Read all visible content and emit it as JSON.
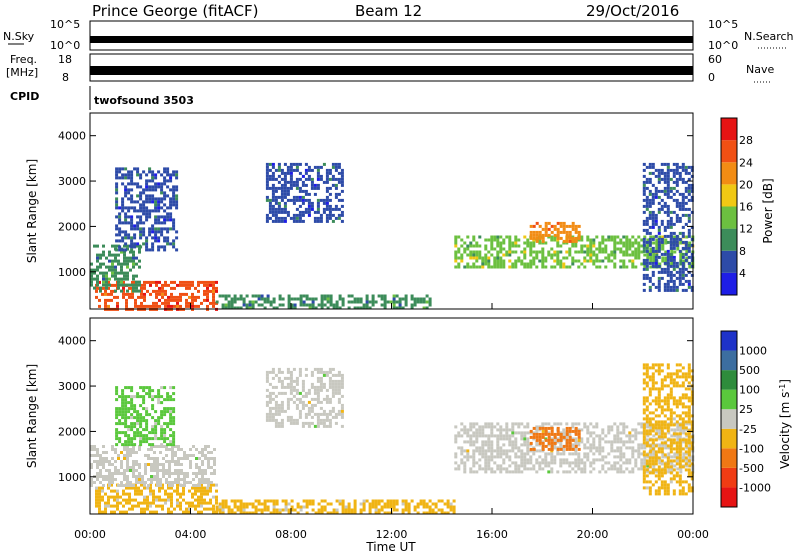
{
  "header": {
    "station": "Prince George (fitACF)",
    "beam": "Beam 12",
    "date": "29/Oct/2016"
  },
  "summary_panels": {
    "nsky_label": "N.Sky",
    "nsky_ticks": [
      "10^5",
      "10^0"
    ],
    "nsearch_label": "N.Search",
    "nsearch_ticks": [
      "10^5",
      "10^0"
    ],
    "freq_label": "Freq.",
    "freq_unit": "[MHz]",
    "freq_ticks": [
      "18",
      "8"
    ],
    "nave_label": "Nave",
    "nave_ticks": [
      "60",
      "0"
    ],
    "cpid_label": "CPID",
    "cpid_value": "twofsound 3503"
  },
  "x_axis": {
    "label": "Time UT",
    "ticks": [
      "00:00",
      "04:00",
      "08:00",
      "12:00",
      "16:00",
      "20:00",
      "00:00"
    ]
  },
  "y_axis": {
    "label": "Slant Range [km]",
    "ticks": [
      "1000",
      "2000",
      "3000",
      "4000"
    ]
  },
  "power_scale": {
    "label": "Power [dB]",
    "ticks": [
      "4",
      "8",
      "12",
      "16",
      "20",
      "24",
      "28"
    ],
    "colors": [
      "#1e1ee6",
      "#2d4ba8",
      "#3c8c5a",
      "#6cc040",
      "#f0c814",
      "#f28c14",
      "#f05014",
      "#e61414"
    ]
  },
  "velocity_scale": {
    "label": "Velocity [m s",
    "label_sup": "-1",
    "label_end": "]",
    "ticks": [
      "1000",
      "500",
      "100",
      "25",
      "-25",
      "-100",
      "-500",
      "-1000"
    ],
    "colors": [
      "#1e32c8",
      "#3c6ea0",
      "#2e8c3c",
      "#5ac83c",
      "#c8c8c0",
      "#f0b414",
      "#f07814",
      "#f03c14",
      "#e61414"
    ]
  },
  "chart_data": [
    {
      "type": "heatmap",
      "panel": "power",
      "x_unit": "hours UT",
      "y_unit": "km",
      "xlim": [
        0,
        24
      ],
      "ylim": [
        180,
        4500
      ],
      "clim": [
        0,
        30
      ],
      "regions": [
        {
          "x": [
            0.2,
            5.0
          ],
          "y": [
            200,
            800
          ],
          "value": 26
        },
        {
          "x": [
            0.0,
            2.0
          ],
          "y": [
            600,
            1600
          ],
          "value": 10
        },
        {
          "x": [
            1.0,
            3.5
          ],
          "y": [
            1500,
            3300
          ],
          "value": 6
        },
        {
          "x": [
            5.0,
            13.5
          ],
          "y": [
            200,
            500
          ],
          "value": 10
        },
        {
          "x": [
            7.0,
            10.0
          ],
          "y": [
            2100,
            3400
          ],
          "value": 6
        },
        {
          "x": [
            14.5,
            24.0
          ],
          "y": [
            1100,
            1800
          ],
          "value": 14
        },
        {
          "x": [
            17.5,
            19.5
          ],
          "y": [
            1700,
            2100
          ],
          "value": 22
        },
        {
          "x": [
            22.0,
            24.0
          ],
          "y": [
            600,
            3400
          ],
          "value": 7
        }
      ]
    },
    {
      "type": "heatmap",
      "panel": "velocity",
      "x_unit": "hours UT",
      "y_unit": "km",
      "xlim": [
        0,
        24
      ],
      "ylim": [
        180,
        4500
      ],
      "clim": [
        -1000,
        1000
      ],
      "regions": [
        {
          "x": [
            0.2,
            5.0
          ],
          "y": [
            250,
            850
          ],
          "value": -150
        },
        {
          "x": [
            0.0,
            5.0
          ],
          "y": [
            800,
            1700
          ],
          "value": 0
        },
        {
          "x": [
            1.0,
            3.3
          ],
          "y": [
            1700,
            3000
          ],
          "value": 120
        },
        {
          "x": [
            5.0,
            14.5
          ],
          "y": [
            200,
            500
          ],
          "value": -150
        },
        {
          "x": [
            7.0,
            10.0
          ],
          "y": [
            2100,
            3400
          ],
          "value": 0
        },
        {
          "x": [
            14.5,
            24.0
          ],
          "y": [
            1100,
            2200
          ],
          "value": 0
        },
        {
          "x": [
            17.5,
            19.5
          ],
          "y": [
            1600,
            2100
          ],
          "value": -400
        },
        {
          "x": [
            22.0,
            24.0
          ],
          "y": [
            600,
            3500
          ],
          "value": -200
        }
      ]
    }
  ]
}
